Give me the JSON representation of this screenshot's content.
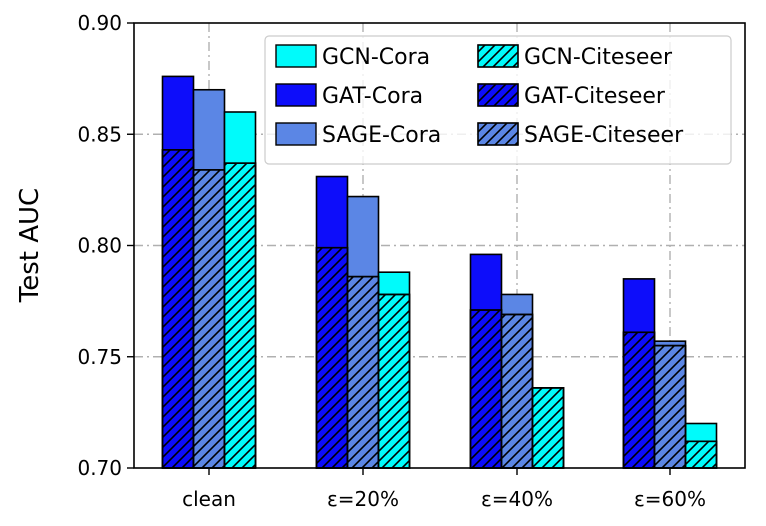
{
  "chart_data": {
    "type": "bar",
    "ylabel": "Test AUC",
    "xlabel": "",
    "ylim": [
      0.7,
      0.9
    ],
    "yticks": [
      "0.70",
      "0.75",
      "0.80",
      "0.85",
      "0.90"
    ],
    "categories": [
      "clean",
      "ε=20%",
      "ε=40%",
      "ε=60%"
    ],
    "grid": "dash-dot",
    "legend_position": "top-right",
    "series": [
      {
        "name": "GAT-Cora",
        "model": "GAT",
        "dataset": "Cora",
        "color": "#0d0dfa",
        "values": [
          0.876,
          0.831,
          0.796,
          0.785
        ]
      },
      {
        "name": "GAT-Citeseer",
        "model": "GAT",
        "dataset": "Citeseer",
        "color": "#0d0dfa",
        "values": [
          0.843,
          0.799,
          0.771,
          0.761
        ]
      },
      {
        "name": "SAGE-Cora",
        "model": "SAGE",
        "dataset": "Cora",
        "color": "#5b86e5",
        "values": [
          0.87,
          0.822,
          0.778,
          0.757
        ]
      },
      {
        "name": "SAGE-Citeseer",
        "model": "SAGE",
        "dataset": "Citeseer",
        "color": "#5b86e5",
        "values": [
          0.834,
          0.786,
          0.769,
          0.755
        ]
      },
      {
        "name": "GCN-Cora",
        "model": "GCN",
        "dataset": "Cora",
        "color": "#00fbfb",
        "values": [
          0.86,
          0.788,
          0.736,
          0.72
        ]
      },
      {
        "name": "GCN-Citeseer",
        "model": "GCN",
        "dataset": "Citeseer",
        "color": "#00fbfb",
        "values": [
          0.837,
          0.778,
          0.736,
          0.712
        ]
      }
    ],
    "legend": [
      {
        "name": "GCN-Cora",
        "color": "#00fbfb",
        "hatch": false
      },
      {
        "name": "GCN-Citeseer",
        "color": "#00fbfb",
        "hatch": true
      },
      {
        "name": "GAT-Cora",
        "color": "#0d0dfa",
        "hatch": false
      },
      {
        "name": "GAT-Citeseer",
        "color": "#0d0dfa",
        "hatch": true
      },
      {
        "name": "SAGE-Cora",
        "color": "#5b86e5",
        "hatch": false
      },
      {
        "name": "SAGE-Citeseer",
        "color": "#5b86e5",
        "hatch": true
      }
    ]
  }
}
